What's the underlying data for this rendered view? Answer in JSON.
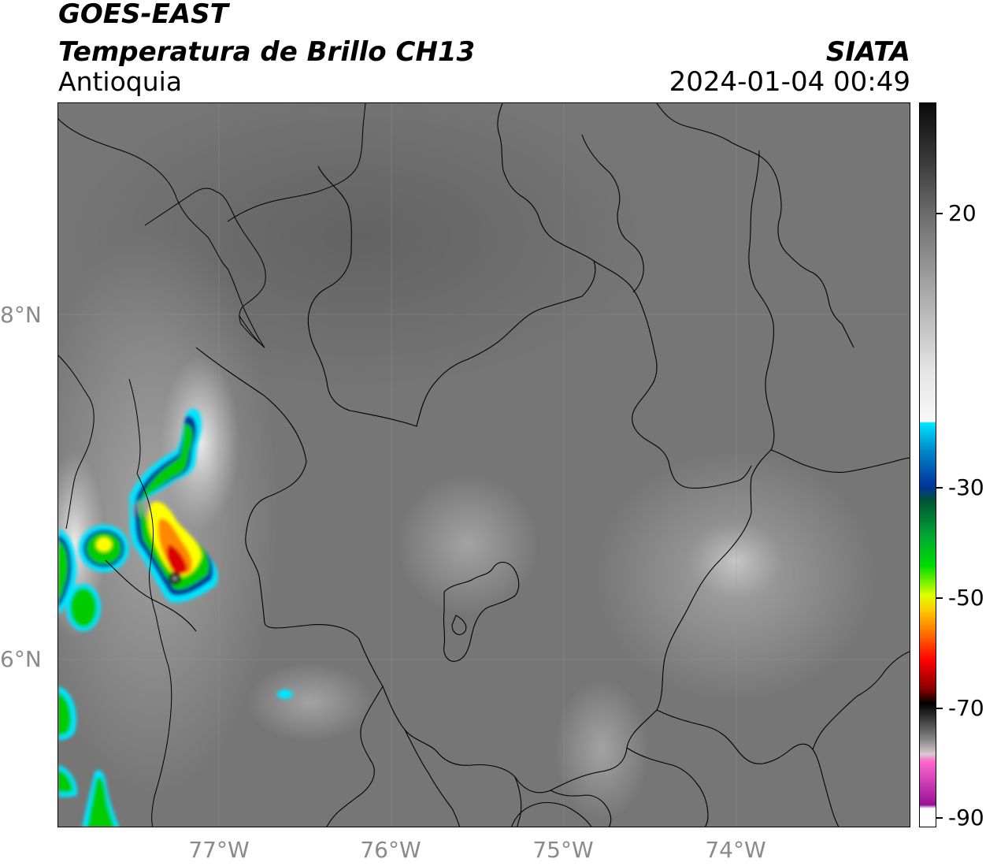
{
  "header": {
    "satellite": "GOES-EAST",
    "product": "Temperatura de Brillo CH13",
    "region": "Antioquia",
    "agency": "SIATA",
    "datetime": "2024-01-04 00:49"
  },
  "map": {
    "lat_ticks": [
      "8°N",
      "6°N"
    ],
    "lon_ticks": [
      "77°W",
      "76°W",
      "75°W",
      "74°W"
    ],
    "background_color": "#777777",
    "border_color": "#000000",
    "features": [
      "department-borders",
      "coastline",
      "convective-storm-cell"
    ]
  },
  "colorbar": {
    "ticks": [
      "20",
      "-30",
      "-50",
      "-70",
      "-90"
    ],
    "tick_values": [
      20,
      -30,
      -50,
      -70,
      -90
    ],
    "range": [
      -90,
      40
    ],
    "colors": {
      "warm_top": "#0a0a0a",
      "warm_gray": "#8c8c8c",
      "near_white": "#f2f2f2",
      "cyan": "#00e5ff",
      "blue": "#003399",
      "green": "#00cc00",
      "yellow": "#ffff00",
      "orange": "#ff8800",
      "red": "#dd0000",
      "black": "#000000",
      "pink": "#ff66cc",
      "purple": "#991199"
    }
  }
}
